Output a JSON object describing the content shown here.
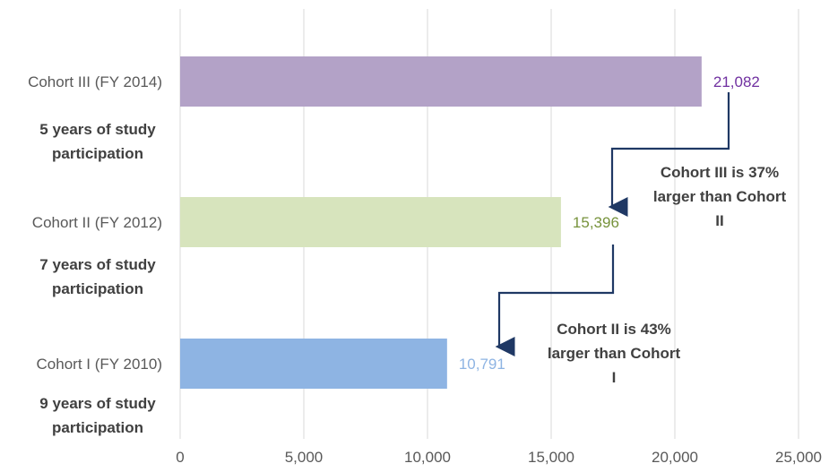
{
  "chart_data": {
    "type": "bar",
    "orientation": "horizontal",
    "categories": [
      "Cohort III (FY 2014)",
      "Cohort II (FY 2012)",
      "Cohort I (FY 2010)"
    ],
    "values": [
      21082,
      15396,
      10791
    ],
    "value_labels": [
      "21,082",
      "15,396",
      "10,791"
    ],
    "subcategory_notes": [
      "5 years of study participation",
      "7 years of study participation",
      "9 years of study participation"
    ],
    "xlim": [
      0,
      25000
    ],
    "xticks": [
      0,
      5000,
      10000,
      15000,
      20000,
      25000
    ],
    "xtick_labels": [
      "0",
      "5,000",
      "10,000",
      "15,000",
      "20,000",
      "25,000"
    ],
    "grid": true,
    "colors": {
      "bars": [
        "#b3a2c7",
        "#d7e4bd",
        "#8eb4e3"
      ],
      "labels": [
        "#7030a0",
        "#77933c",
        "#8eb4e3"
      ],
      "arrow": "#1f3864",
      "grid": "#d9d9d9"
    },
    "annotations": [
      {
        "text": "Cohort III is 37% larger than Cohort II",
        "arrow": "down"
      },
      {
        "text": "Cohort II is 43% larger than Cohort I",
        "arrow": "down"
      }
    ]
  }
}
